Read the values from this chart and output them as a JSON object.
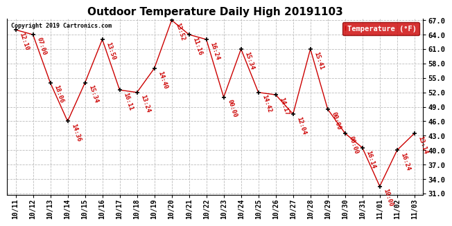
{
  "title": "Outdoor Temperature Daily High 20191103",
  "copyright": "Copyright 2019 Cartronics.com",
  "legend_label": "Temperature (°F)",
  "dates": [
    "10/11",
    "10/12",
    "10/13",
    "10/14",
    "10/15",
    "10/16",
    "10/17",
    "10/18",
    "10/19",
    "10/20",
    "10/21",
    "10/22",
    "10/23",
    "10/24",
    "10/25",
    "10/26",
    "10/27",
    "10/28",
    "10/29",
    "10/30",
    "10/31",
    "11/01",
    "11/02",
    "11/03"
  ],
  "temps": [
    65.0,
    64.0,
    54.0,
    46.0,
    54.0,
    63.0,
    52.5,
    52.0,
    57.0,
    67.0,
    64.0,
    63.0,
    51.0,
    61.0,
    52.0,
    51.5,
    47.5,
    61.0,
    48.5,
    43.5,
    40.5,
    32.5,
    40.0,
    43.5
  ],
  "time_labels": [
    "12:10",
    "07:00",
    "18:06",
    "14:36",
    "15:34",
    "13:50",
    "16:11",
    "13:24",
    "14:40",
    "13:52",
    "11:16",
    "16:24",
    "00:00",
    "15:34",
    "14:42",
    "14:17",
    "12:04",
    "15:41",
    "00:00",
    "00:00",
    "16:14",
    "10:00",
    "16:24",
    "13:14"
  ],
  "ylim_min": 31.0,
  "ylim_max": 67.0,
  "yticks": [
    31.0,
    34.0,
    37.0,
    40.0,
    43.0,
    46.0,
    49.0,
    52.0,
    55.0,
    58.0,
    61.0,
    64.0,
    67.0
  ],
  "line_color": "#cc0000",
  "marker_color": "#000000",
  "label_color": "#cc0000",
  "background_color": "#ffffff",
  "grid_color": "#bbbbbb",
  "legend_bg": "#cc0000",
  "legend_text_color": "#ffffff",
  "title_fontsize": 11,
  "tick_fontsize": 7,
  "label_fontsize": 6.5,
  "copyright_fontsize": 6
}
